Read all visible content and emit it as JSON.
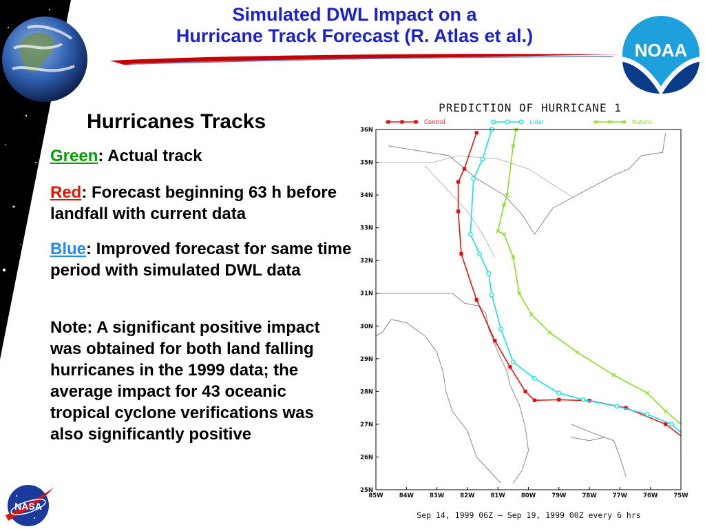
{
  "slide": {
    "title_line1": "Simulated DWL Impact on a",
    "title_line2": "Hurricane Track Forecast (R. Atlas et al.)",
    "noaa_logo_text": "NOAA",
    "nasa_logo_text": "NASA",
    "heading": "Hurricanes Tracks",
    "items": [
      {
        "keyword": "Green",
        "text": ":  Actual track"
      },
      {
        "keyword": "Red",
        "text": ":  Forecast beginning 63 h before landfall with current data"
      },
      {
        "keyword": "Blue",
        "text": ":  Improved forecast for same time period with simulated DWL data"
      }
    ],
    "note": "Note:  A significant positive impact was obtained for both land falling hurricanes in the 1999 data; the average impact for 43 oceanic tropical cyclone verifications was also significantly positive"
  },
  "chart_data": {
    "type": "line",
    "title": "PREDICTION OF HURRICANE 1",
    "caption": "Sep 14, 1999 06Z  —  Sep 19, 1999 00Z every 6 hrs",
    "xlabel": "",
    "ylabel": "",
    "xlim": [
      -85,
      -75
    ],
    "ylim": [
      25,
      36
    ],
    "x_ticks": [
      "85W",
      "84W",
      "83W",
      "82W",
      "81W",
      "80W",
      "79W",
      "78W",
      "77W",
      "76W",
      "75W"
    ],
    "y_ticks": [
      "25N",
      "26N",
      "27N",
      "28N",
      "29N",
      "30N",
      "31N",
      "32N",
      "33N",
      "34N",
      "35N",
      "36N"
    ],
    "legend_position": "top",
    "series": [
      {
        "name": "Control",
        "color": "#e01010",
        "marker": "square",
        "lon": [
          -75,
          -75.5,
          -76.8,
          -78,
          -79,
          -79.8,
          -80.1,
          -80.6,
          -81.1,
          -81.7,
          -82.2,
          -82.3,
          -82.3,
          -82.1,
          -81.7
        ],
        "lat": [
          26.65,
          27.0,
          27.5,
          27.72,
          27.75,
          27.73,
          28.0,
          28.75,
          29.55,
          30.8,
          32.2,
          33.5,
          34.4,
          34.8,
          35.9
        ]
      },
      {
        "name": "Lidar",
        "color": "#10e0f0",
        "marker": "circle",
        "lon": [
          -75,
          -75.3,
          -76.1,
          -77.1,
          -78.2,
          -79.0,
          -79.8,
          -80.5,
          -80.9,
          -81.2,
          -81.3,
          -81.6,
          -81.9,
          -81.8,
          -81.5,
          -81.2
        ],
        "lat": [
          26.75,
          27.0,
          27.3,
          27.55,
          27.75,
          27.95,
          28.4,
          28.9,
          29.9,
          30.95,
          31.6,
          32.2,
          32.8,
          34.5,
          35.1,
          36.0
        ]
      },
      {
        "name": "Nature",
        "color": "#88dd22",
        "marker": "cross",
        "lon": [
          -75,
          -75.5,
          -76.1,
          -77.2,
          -78.4,
          -79.3,
          -79.9,
          -80.3,
          -80.5,
          -80.8,
          -81.0,
          -80.8,
          -80.7,
          -80.5,
          -80.4
        ],
        "lat": [
          27.0,
          27.4,
          27.95,
          28.5,
          29.2,
          29.8,
          30.35,
          31.0,
          32.1,
          32.8,
          32.9,
          33.7,
          34.0,
          35.5,
          36.0
        ]
      }
    ]
  }
}
